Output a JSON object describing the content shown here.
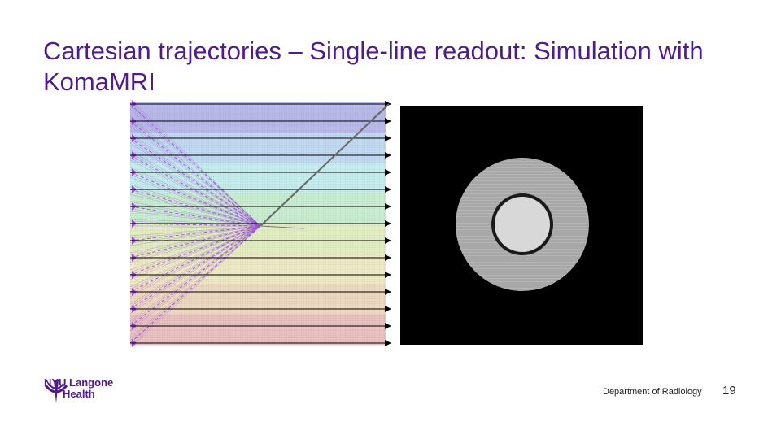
{
  "slide": {
    "title": "Cartesian trajectories – Single-line readout: Simulation with KomaMRI",
    "page_number": "19",
    "department": "Department of Radiology"
  },
  "logo": {
    "line1": "NYU Langone",
    "line2": "Health"
  },
  "figure": {
    "kspace_lines": 15,
    "bands": [
      "#b8b8e8",
      "#c0d8f0",
      "#c4ecec",
      "#c8ecd0",
      "#e0ecc0",
      "#ece8c4",
      "#ecd8c0",
      "#e8c0c0"
    ],
    "line_color": "#000000",
    "trajectory_color": "#9b4fd6"
  }
}
